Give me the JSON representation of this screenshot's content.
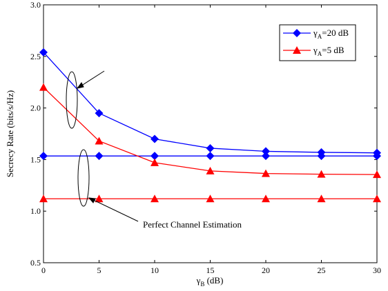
{
  "chart_data": {
    "type": "line",
    "xlabel": {
      "main": "γ",
      "sub": "B",
      "rest": " (dB)"
    },
    "ylabel": "Secrecy Rate (bits/s/Hz)",
    "xlim": [
      0,
      30
    ],
    "ylim": [
      0.5,
      3.0
    ],
    "xticks": [
      "0",
      "5",
      "10",
      "15",
      "20",
      "25",
      "30"
    ],
    "yticks": [
      "0.5",
      "1.0",
      "1.5",
      "2.0",
      "2.5",
      "3.0"
    ],
    "grid": false,
    "legend_position": "top-right",
    "legend": [
      {
        "main": "γ",
        "sub": "A",
        "rest": "=20 dB"
      },
      {
        "main": "γ",
        "sub": "A",
        "rest": "=5 dB"
      }
    ],
    "series": [
      {
        "color": "#0000ff",
        "marker": "diamond",
        "x": [
          0,
          5,
          10,
          15,
          20,
          25,
          30
        ],
        "y": [
          2.54,
          1.95,
          1.7,
          1.61,
          1.58,
          1.57,
          1.565
        ]
      },
      {
        "color": "#0000ff",
        "marker": "diamond",
        "x": [
          0,
          5,
          10,
          15,
          20,
          25,
          30
        ],
        "y": [
          1.535,
          1.535,
          1.535,
          1.535,
          1.535,
          1.535,
          1.535
        ]
      },
      {
        "color": "#ff0000",
        "marker": "triangle",
        "x": [
          0,
          5,
          10,
          15,
          20,
          25,
          30
        ],
        "y": [
          2.2,
          1.68,
          1.47,
          1.39,
          1.365,
          1.358,
          1.355
        ]
      },
      {
        "color": "#ff0000",
        "marker": "triangle",
        "x": [
          0,
          5,
          10,
          15,
          20,
          25,
          30
        ],
        "y": [
          1.12,
          1.12,
          1.12,
          1.12,
          1.12,
          1.12,
          1.12
        ]
      }
    ],
    "annotations": [
      {
        "text": "Perfect Channel Estimation"
      }
    ]
  }
}
